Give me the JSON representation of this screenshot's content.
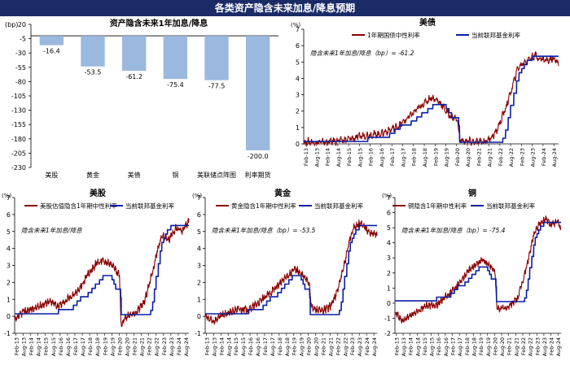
{
  "banner_title": "各类资产隐含未来加息/降息预期",
  "colors": {
    "banner": "#1b2b66",
    "bar": "#9bb8de",
    "implied": "#8b0000",
    "fed": "#0a1fa6",
    "axis": "#000000"
  },
  "chart_data": [
    {
      "type": "bar",
      "title": "资产隐含未来1年加息/降息",
      "unit": "(bp)",
      "categories": [
        "美股",
        "黄金",
        "美债",
        "铜",
        "美联储点阵图",
        "利率期货"
      ],
      "values": [
        -16.4,
        -53.5,
        -61.2,
        -75.4,
        -77.5,
        -200.0
      ],
      "data_labels": [
        "-16.4",
        "-53.5",
        "-61.2",
        "-75.4",
        "-77.5",
        "-200.0"
      ],
      "ylim": [
        -230,
        20
      ],
      "yticks": [
        20,
        -5,
        -30,
        -55,
        -80,
        -105,
        -130,
        -155,
        -180,
        -205,
        -230
      ]
    },
    {
      "type": "line",
      "title": "美债",
      "unit": "(%)",
      "series": [
        {
          "name": "1年期国债中性利率",
          "role": "implied"
        },
        {
          "name": "当前联邦基金利率",
          "role": "fed"
        }
      ],
      "annotation": "隐含未来1年加息/降息（bp）= -61.2",
      "ylim": [
        0,
        7
      ],
      "yticks": [
        0,
        1,
        2,
        3,
        4,
        5,
        6,
        7
      ],
      "xticks": [
        "Feb-13",
        "Aug-13",
        "Feb-14",
        "Aug-14",
        "Feb-15",
        "Aug-15",
        "Feb-16",
        "Aug-16",
        "Feb-17",
        "Aug-17",
        "Feb-18",
        "Aug-18",
        "Feb-19",
        "Aug-19",
        "Feb-20",
        "Aug-20",
        "Feb-21",
        "Aug-21",
        "Feb-22",
        "Aug-22",
        "Feb-23",
        "Aug-23",
        "Feb-24",
        "Aug-24"
      ]
    },
    {
      "type": "line",
      "title": "美股",
      "unit": "(%)",
      "series": [
        {
          "name": "美股估值隐含1年期中性利率",
          "role": "implied"
        },
        {
          "name": "当前联邦基金利率",
          "role": "fed"
        }
      ],
      "annotation": "隐含未来1年加息/降息",
      "ylim": [
        -1,
        7
      ],
      "yticks": [
        -1,
        0,
        1,
        2,
        3,
        4,
        5,
        6,
        7
      ],
      "xticks": [
        "Feb-13",
        "Aug-13",
        "Feb-14",
        "Aug-14",
        "Feb-15",
        "Aug-15",
        "Feb-16",
        "Aug-16",
        "Feb-17",
        "Aug-17",
        "Feb-18",
        "Aug-18",
        "Feb-19",
        "Aug-19",
        "Feb-20",
        "Aug-20",
        "Feb-21",
        "Aug-21",
        "Feb-22",
        "Aug-22",
        "Feb-23",
        "Aug-23",
        "Feb-24",
        "Aug-24"
      ]
    },
    {
      "type": "line",
      "title": "黄金",
      "unit": "(%)",
      "series": [
        {
          "name": "黄金隐含1年期中性利率",
          "role": "implied"
        },
        {
          "name": "当前联邦基金利率",
          "role": "fed"
        }
      ],
      "annotation": "隐含未来1年加息/降息（bp）= -53.5",
      "ylim": [
        -1,
        7
      ],
      "yticks": [
        -1,
        0,
        1,
        2,
        3,
        4,
        5,
        6,
        7
      ],
      "xticks": [
        "Feb-13",
        "Aug-13",
        "Feb-14",
        "Aug-14",
        "Feb-15",
        "Aug-15",
        "Feb-16",
        "Aug-16",
        "Feb-17",
        "Aug-17",
        "Feb-18",
        "Aug-18",
        "Feb-19",
        "Aug-19",
        "Feb-20",
        "Aug-20",
        "Feb-21",
        "Aug-21",
        "Feb-22",
        "Aug-22",
        "Feb-23",
        "Aug-23",
        "Feb-24",
        "Aug-24"
      ]
    },
    {
      "type": "line",
      "title": "铜",
      "unit": "(%)",
      "series": [
        {
          "name": "铜隐含1年期中性利率",
          "role": "implied"
        },
        {
          "name": "当前联邦基金利率",
          "role": "fed"
        }
      ],
      "annotation": "隐含未来1年加息/降息（bp）= -75.4",
      "ylim": [
        -2,
        7
      ],
      "yticks": [
        -2,
        -1,
        0,
        1,
        2,
        3,
        4,
        5,
        6,
        7
      ],
      "xticks": [
        "Feb-13",
        "Aug-13",
        "Feb-14",
        "Aug-14",
        "Feb-15",
        "Aug-15",
        "Feb-16",
        "Aug-16",
        "Feb-17",
        "Aug-17",
        "Feb-18",
        "Aug-18",
        "Feb-19",
        "Aug-19",
        "Feb-20",
        "Aug-20",
        "Feb-21",
        "Aug-21",
        "Feb-22",
        "Aug-22",
        "Feb-23",
        "Aug-23",
        "Feb-24",
        "Aug-24"
      ]
    }
  ]
}
